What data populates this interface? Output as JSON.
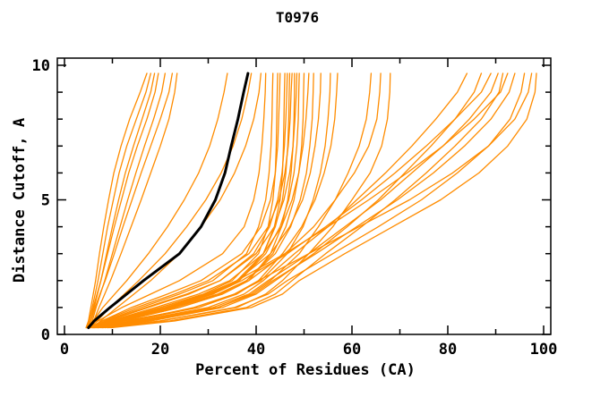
{
  "chart_data": {
    "type": "line",
    "title": "T0976",
    "xlabel": "Percent of Residues (CA)",
    "ylabel": "Distance Cutoff, A",
    "xlim": [
      0,
      100
    ],
    "ylim": [
      0,
      10
    ],
    "x_major_ticks": [
      0,
      20,
      40,
      60,
      80,
      100
    ],
    "x_minor_ticks": [
      10,
      30,
      50,
      70,
      90
    ],
    "y_major_ticks": [
      0,
      5,
      10
    ],
    "y_minor_ticks": [
      1,
      2,
      3,
      4,
      6,
      7,
      8,
      9
    ],
    "grid": false,
    "legend": "none",
    "colors": {
      "model_line": "#ff8c00",
      "reference_line": "#000000",
      "axis": "#000000",
      "background": "#ffffff"
    },
    "y_levels": [
      0.25,
      0.5,
      1,
      1.5,
      2,
      3,
      4,
      5,
      6,
      7,
      8,
      9,
      9.7
    ],
    "reference_series": {
      "name": "reference-model",
      "x": [
        5,
        6.2,
        9.5,
        13,
        16.5,
        24,
        28.5,
        31.5,
        33.5,
        34.8,
        36.2,
        37.4,
        38.3
      ]
    },
    "model_series": [
      {
        "x": [
          4.5,
          5,
          5.5,
          6,
          6.5,
          7.3,
          8.2,
          9.2,
          10.3,
          11.8,
          13.6,
          15.8,
          17.2
        ]
      },
      {
        "x": [
          4.7,
          5.2,
          5.8,
          6.4,
          7,
          8,
          9,
          10.2,
          11.4,
          13,
          15,
          17,
          18
        ]
      },
      {
        "x": [
          5,
          5.5,
          6.2,
          6.9,
          7.6,
          8.8,
          10,
          11.3,
          12.7,
          14.4,
          16.2,
          18,
          18.8
        ]
      },
      {
        "x": [
          4.6,
          5.2,
          6,
          6.8,
          7.6,
          9,
          10.4,
          11.9,
          13.4,
          15.2,
          17.2,
          18.9,
          19.6
        ]
      },
      {
        "x": [
          5.2,
          5.8,
          6.6,
          7.5,
          8.4,
          10,
          11.6,
          13.2,
          14.9,
          16.7,
          18.6,
          20.3,
          21
        ]
      },
      {
        "x": [
          4.8,
          5.5,
          6.4,
          7.4,
          8.5,
          10.4,
          12.2,
          14.1,
          16,
          18,
          20,
          21.8,
          22.5
        ]
      },
      {
        "x": [
          5.4,
          6.1,
          7.2,
          8.4,
          9.6,
          11.8,
          13.9,
          16,
          18,
          20,
          21.8,
          23,
          23.5
        ]
      },
      {
        "x": [
          5,
          6,
          8,
          10.5,
          13,
          17.5,
          21.5,
          25,
          28,
          30.3,
          32,
          33.3,
          34
        ]
      },
      {
        "x": [
          5.5,
          6.8,
          9.5,
          12.5,
          15.5,
          21,
          25.5,
          29.5,
          32.7,
          35.2,
          37,
          38.3,
          39
        ]
      },
      {
        "x": [
          6,
          7.5,
          11,
          14.5,
          18,
          24,
          28.5,
          32.5,
          35.5,
          37.8,
          39.5,
          40.6,
          41
        ]
      },
      {
        "x": [
          5,
          7,
          12,
          18,
          24,
          33,
          37.5,
          39.5,
          40.6,
          41.2,
          41.6,
          41.9,
          42
        ]
      },
      {
        "x": [
          5.5,
          8.5,
          16,
          24,
          31,
          38,
          40.5,
          42,
          42.7,
          43.1,
          43.3,
          43.4,
          43.5
        ]
      },
      {
        "x": [
          6,
          10,
          20,
          29,
          35,
          40.5,
          42.5,
          43.5,
          44,
          44.2,
          44.3,
          44.4,
          44.5
        ]
      },
      {
        "x": [
          5.2,
          7.8,
          14,
          21.5,
          28.5,
          37,
          41,
          43,
          44,
          44.5,
          44.7,
          44.9,
          45
        ]
      },
      {
        "x": [
          6.5,
          11,
          22,
          31,
          36.5,
          41.5,
          43.8,
          45,
          45.5,
          45.7,
          45.8,
          45.9,
          46
        ]
      },
      {
        "x": [
          5.8,
          9,
          17.5,
          26,
          32.5,
          39.5,
          42.8,
          44.5,
          45.4,
          45.9,
          46.2,
          46.4,
          46.5
        ]
      },
      {
        "x": [
          6.2,
          10.5,
          21,
          30,
          36,
          41.5,
          44,
          45.5,
          46.2,
          46.6,
          46.8,
          46.9,
          47
        ]
      },
      {
        "x": [
          5.4,
          8,
          15,
          23,
          30,
          38.5,
          42.5,
          44.8,
          46,
          46.7,
          47.1,
          47.3,
          47.5
        ]
      },
      {
        "x": [
          7,
          12,
          24,
          33,
          38.5,
          43,
          45.3,
          46.6,
          47.3,
          47.7,
          47.9,
          48,
          48
        ]
      },
      {
        "x": [
          5.6,
          8.8,
          17,
          25.5,
          32.5,
          40,
          43.8,
          45.8,
          47,
          47.7,
          48.1,
          48.4,
          48.5
        ]
      },
      {
        "x": [
          6.3,
          10.8,
          21.5,
          30.5,
          36.5,
          42,
          45,
          46.8,
          47.9,
          48.5,
          48.8,
          48.9,
          49
        ]
      },
      {
        "x": [
          6.8,
          11.5,
          23,
          32.5,
          38,
          43.5,
          46.2,
          47.9,
          48.9,
          49.5,
          49.8,
          49.9,
          50
        ]
      },
      {
        "x": [
          5.9,
          9.5,
          19,
          28,
          34.5,
          41.5,
          45.3,
          47.5,
          48.9,
          49.8,
          50.4,
          50.8,
          51
        ]
      },
      {
        "x": [
          6.6,
          11,
          22.5,
          32,
          38,
          44,
          47.2,
          49.2,
          50.5,
          51.2,
          51.7,
          51.9,
          52
        ]
      },
      {
        "x": [
          6,
          10,
          20,
          29.5,
          36,
          43,
          47,
          49.7,
          51.3,
          52.3,
          53,
          53.4,
          53.5
        ]
      },
      {
        "x": [
          7.2,
          12.5,
          28,
          35.5,
          41,
          46.5,
          49.8,
          51.9,
          53.4,
          54.4,
          55,
          55.4,
          55.5
        ]
      },
      {
        "x": [
          7,
          14,
          28,
          36,
          40.5,
          45.5,
          49.5,
          52.3,
          54.2,
          55.6,
          56.4,
          56.8,
          57
        ]
      },
      {
        "x": [
          8,
          17,
          32,
          39,
          43,
          49,
          53,
          56.5,
          59.2,
          61.5,
          63,
          63.7,
          64
        ]
      },
      {
        "x": [
          6.5,
          12,
          24,
          33,
          38.5,
          46,
          52,
          56.5,
          60.5,
          63.5,
          65.2,
          65.8,
          66
        ]
      },
      {
        "x": [
          9,
          20,
          36,
          42,
          45.5,
          51,
          56,
          60,
          63.8,
          66.2,
          67.4,
          67.9,
          68
        ]
      },
      {
        "x": [
          7.5,
          15,
          30,
          37.5,
          41.5,
          48,
          55,
          61,
          67,
          72.5,
          77.5,
          82,
          84
        ]
      },
      {
        "x": [
          8.5,
          18,
          33,
          40,
          44,
          52,
          59,
          65.5,
          71,
          76.5,
          81.5,
          85.5,
          87
        ]
      },
      {
        "x": [
          6.2,
          11,
          22,
          31,
          37,
          46.5,
          54.5,
          62,
          69,
          75.5,
          81.5,
          87,
          89
        ]
      },
      {
        "x": [
          7.8,
          16,
          31,
          38.5,
          42.5,
          51,
          58.5,
          66,
          72.5,
          79,
          84.5,
          89,
          90.5
        ]
      },
      {
        "x": [
          9.5,
          22,
          38,
          44,
          47.5,
          54.5,
          62,
          69,
          75.5,
          81.5,
          87,
          90.7,
          91.5
        ]
      },
      {
        "x": [
          6,
          10.5,
          21,
          30,
          36,
          46,
          55,
          63.5,
          71.5,
          79,
          85.5,
          91,
          92.5
        ]
      },
      {
        "x": [
          8,
          17,
          32,
          39.5,
          43.5,
          52.5,
          61,
          69.5,
          77,
          83.5,
          89,
          92.8,
          94
        ]
      },
      {
        "x": [
          9,
          20,
          35.5,
          42.5,
          46.5,
          56,
          65.5,
          74.5,
          82,
          88.5,
          93,
          95.3,
          96
        ]
      },
      {
        "x": [
          7,
          13.5,
          27,
          35.5,
          40.5,
          51,
          61.5,
          72,
          81,
          88.5,
          94,
          96.8,
          97.5
        ]
      },
      {
        "x": [
          9.8,
          23,
          39,
          45.5,
          49,
          58.5,
          68.5,
          78.5,
          86.5,
          92.5,
          96.5,
          98.2,
          98.5
        ]
      }
    ]
  }
}
